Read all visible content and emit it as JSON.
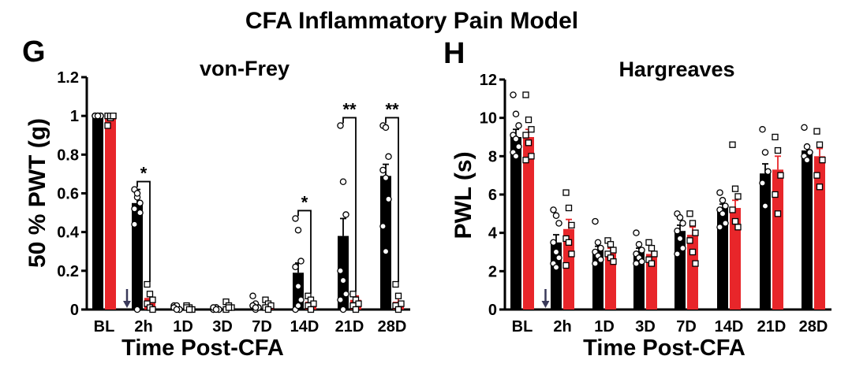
{
  "figure": {
    "title": "CFA Inflammatory Pain Model"
  },
  "chart_data": [
    {
      "panel_label": "G",
      "type": "bar",
      "title": "von-Frey",
      "xlabel": "Time Post-CFA",
      "ylabel": "50 % PWT (g)",
      "ylim": [
        0,
        1.2
      ],
      "y_ticks": [
        "0",
        "0.2",
        "0.4",
        "0.6",
        "0.8",
        "1",
        "1.2"
      ],
      "categories": [
        "BL",
        "2h",
        "1D",
        "3D",
        "7D",
        "14D",
        "21D",
        "28D"
      ],
      "arrow_after_category": "BL",
      "series": [
        {
          "color": "#000000",
          "marker": "circle",
          "values": [
            1.0,
            0.55,
            0.0,
            0.0,
            0.0,
            0.19,
            0.38,
            0.69
          ],
          "errors": [
            0.0,
            0.07,
            0.0,
            0.0,
            0.0,
            0.05,
            0.09,
            0.06
          ],
          "points": [
            [
              1,
              1,
              1,
              1,
              1,
              1,
              1,
              1
            ],
            [
              0.62,
              0.58,
              0.5,
              0.44,
              0.6,
              0.55,
              0.52,
              0.0
            ],
            [
              0.02,
              0.01,
              0.0,
              0.01,
              0.02,
              0.0,
              0.01,
              0.0
            ],
            [
              0.0,
              0.01,
              0.0,
              0.0,
              0.01,
              0.0,
              0.01,
              0.0
            ],
            [
              0.07,
              0.03,
              0.01,
              0.02,
              0.0,
              0.01,
              0.02,
              0.01
            ],
            [
              0.47,
              0.41,
              0.25,
              0.22,
              0.12,
              0.05,
              0.0,
              0.02
            ],
            [
              0.95,
              0.66,
              0.49,
              0.2,
              0.15,
              0.08,
              0.05,
              0.0
            ],
            [
              0.95,
              0.94,
              0.79,
              0.72,
              0.68,
              0.57,
              0.43,
              0.3
            ]
          ]
        },
        {
          "color": "#e8262a",
          "marker": "square",
          "values": [
            1.0,
            0.06,
            0.01,
            0.01,
            0.02,
            0.04,
            0.05,
            0.04
          ],
          "errors": [
            0.0,
            0.02,
            0.0,
            0.0,
            0.01,
            0.01,
            0.02,
            0.02
          ],
          "points": [
            [
              1,
              0.99,
              1,
              0.95,
              1,
              1
            ],
            [
              0.13,
              0.08,
              0.05,
              0.03,
              0.01,
              0.0
            ],
            [
              0.02,
              0.01,
              0.0,
              0.01,
              0.0
            ],
            [
              0.04,
              0.02,
              0.01,
              0.0,
              0.01
            ],
            [
              0.05,
              0.03,
              0.02,
              0.01,
              0.0
            ],
            [
              0.07,
              0.05,
              0.03,
              0.02,
              0.0
            ],
            [
              0.08,
              0.05,
              0.03,
              0.02,
              0.0
            ],
            [
              0.13,
              0.07,
              0.03,
              0.02,
              0.0
            ]
          ]
        }
      ],
      "significance": [
        {
          "category": "2h",
          "label": "*"
        },
        {
          "category": "14D",
          "label": "*"
        },
        {
          "category": "21D",
          "label": "**"
        },
        {
          "category": "28D",
          "label": "**"
        }
      ]
    },
    {
      "panel_label": "H",
      "type": "bar",
      "title": "Hargreaves",
      "xlabel": "Time Post-CFA",
      "ylabel": "PWL (s)",
      "ylim": [
        0,
        12
      ],
      "y_ticks": [
        "0",
        "2",
        "4",
        "6",
        "8",
        "10",
        "12"
      ],
      "categories": [
        "BL",
        "2h",
        "1D",
        "3D",
        "7D",
        "14D",
        "21D",
        "28D"
      ],
      "arrow_after_category": "BL",
      "series": [
        {
          "color": "#000000",
          "marker": "circle",
          "values": [
            9.0,
            3.5,
            3.1,
            3.0,
            4.1,
            5.3,
            7.1,
            8.3
          ],
          "errors": [
            0.4,
            0.4,
            0.2,
            0.2,
            0.3,
            0.2,
            0.5,
            0.2
          ],
          "points": [
            [
              11.2,
              10.2,
              9.6,
              9.1,
              8.9,
              8.5,
              8.2,
              8.0
            ],
            [
              5.2,
              4.9,
              4.5,
              3.5,
              3.0,
              2.7,
              2.4,
              2.2
            ],
            [
              4.6,
              3.5,
              3.2,
              3.0,
              2.8,
              2.6,
              2.4
            ],
            [
              4.0,
              3.4,
              3.1,
              2.9,
              2.7,
              2.5,
              2.4
            ],
            [
              5.0,
              4.8,
              4.5,
              4.1,
              3.7,
              3.2,
              2.9
            ],
            [
              6.1,
              5.7,
              5.4,
              5.2,
              5.0,
              4.5,
              4.3
            ],
            [
              9.4,
              8.2,
              7.2,
              6.6,
              5.4
            ],
            [
              9.5,
              8.5,
              8.2,
              8.0,
              7.8
            ]
          ]
        },
        {
          "color": "#e8262a",
          "marker": "square",
          "values": [
            9.0,
            4.2,
            3.0,
            2.9,
            3.9,
            5.3,
            7.3,
            8.0
          ],
          "errors": [
            0.4,
            0.5,
            0.2,
            0.2,
            0.4,
            0.4,
            0.7,
            0.4
          ],
          "points": [
            [
              11.2,
              9.9,
              9.4,
              9.1,
              8.7,
              8.0,
              7.8
            ],
            [
              6.1,
              5.3,
              4.4,
              3.7,
              3.5,
              2.9,
              2.3
            ],
            [
              3.6,
              3.4,
              3.1,
              2.9,
              2.7,
              2.5
            ],
            [
              3.5,
              3.2,
              2.9,
              2.6,
              2.4
            ],
            [
              5.0,
              4.5,
              4.0,
              3.6,
              3.0,
              2.4
            ],
            [
              8.6,
              6.3,
              5.9,
              5.2,
              4.6,
              4.3
            ],
            [
              9.0,
              8.3,
              7.0,
              6.0,
              5.0
            ],
            [
              9.3,
              8.6,
              7.8,
              7.0,
              6.4
            ]
          ]
        }
      ]
    }
  ]
}
